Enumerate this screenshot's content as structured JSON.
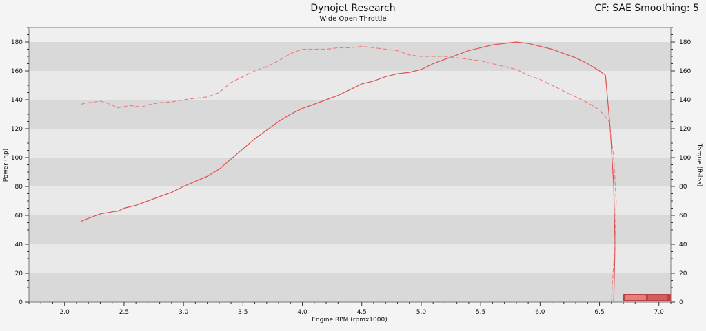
{
  "header": {
    "title": "Dynojet Research",
    "subtitle": "Wide Open Throttle",
    "corner_info": "CF: SAE Smoothing: 5"
  },
  "colors": {
    "power": "#e05050",
    "torque": "#f08080",
    "band_dark": "#d9d9d9",
    "band_light": "#e9e9e9"
  },
  "chart_data": {
    "type": "line",
    "title": "Dynojet Research",
    "subtitle": "Wide Open Throttle",
    "xlabel": "Engine RPM (rpmx1000)",
    "ylabel": "Power (hp)",
    "y2label": "Torque (ft-lbs)",
    "xlim": [
      1.7,
      7.1
    ],
    "ylim": [
      0,
      190
    ],
    "y2lim": [
      0,
      190
    ],
    "x_ticks": [
      "2.0",
      "2.5",
      "3.0",
      "3.5",
      "4.0",
      "4.5",
      "5.0",
      "5.5",
      "6.0",
      "6.5",
      "7.0"
    ],
    "y_ticks": [
      "0",
      "20",
      "40",
      "60",
      "80",
      "100",
      "120",
      "140",
      "160",
      "180"
    ],
    "y2_ticks": [
      "0",
      "20",
      "40",
      "60",
      "80",
      "100",
      "120",
      "140",
      "160",
      "180"
    ],
    "series": [
      {
        "style": "solid",
        "axis": "left",
        "points": [
          [
            2.14,
            56
          ],
          [
            2.2,
            58
          ],
          [
            2.3,
            61
          ],
          [
            2.4,
            62.5
          ],
          [
            2.45,
            63
          ],
          [
            2.5,
            65
          ],
          [
            2.6,
            67
          ],
          [
            2.7,
            70
          ],
          [
            2.8,
            73
          ],
          [
            2.9,
            76
          ],
          [
            3.0,
            80
          ],
          [
            3.1,
            83.5
          ],
          [
            3.2,
            87
          ],
          [
            3.3,
            92
          ],
          [
            3.4,
            99
          ],
          [
            3.5,
            106
          ],
          [
            3.6,
            113
          ],
          [
            3.7,
            119
          ],
          [
            3.8,
            125
          ],
          [
            3.9,
            130
          ],
          [
            4.0,
            134
          ],
          [
            4.1,
            137
          ],
          [
            4.2,
            140
          ],
          [
            4.3,
            143
          ],
          [
            4.4,
            147
          ],
          [
            4.5,
            151
          ],
          [
            4.6,
            153
          ],
          [
            4.7,
            156
          ],
          [
            4.8,
            158
          ],
          [
            4.9,
            159
          ],
          [
            5.0,
            161
          ],
          [
            5.1,
            165
          ],
          [
            5.2,
            168
          ],
          [
            5.3,
            171
          ],
          [
            5.4,
            174
          ],
          [
            5.5,
            176
          ],
          [
            5.6,
            178
          ],
          [
            5.7,
            179
          ],
          [
            5.8,
            180
          ],
          [
            5.9,
            179
          ],
          [
            6.0,
            177
          ],
          [
            6.1,
            175
          ],
          [
            6.2,
            172
          ],
          [
            6.3,
            169
          ],
          [
            6.4,
            165
          ],
          [
            6.5,
            160
          ],
          [
            6.55,
            157
          ],
          [
            6.59,
            120
          ],
          [
            6.62,
            80
          ],
          [
            6.63,
            40
          ],
          [
            6.62,
            0
          ]
        ]
      },
      {
        "style": "dashed",
        "axis": "right",
        "points": [
          [
            2.14,
            137
          ],
          [
            2.2,
            138
          ],
          [
            2.3,
            139
          ],
          [
            2.35,
            138
          ],
          [
            2.45,
            134.5
          ],
          [
            2.55,
            136
          ],
          [
            2.65,
            135
          ],
          [
            2.7,
            136.5
          ],
          [
            2.8,
            138
          ],
          [
            2.9,
            138.5
          ],
          [
            3.0,
            140
          ],
          [
            3.1,
            141
          ],
          [
            3.2,
            142
          ],
          [
            3.3,
            145
          ],
          [
            3.4,
            152
          ],
          [
            3.5,
            156
          ],
          [
            3.6,
            160
          ],
          [
            3.7,
            163
          ],
          [
            3.8,
            167
          ],
          [
            3.9,
            172
          ],
          [
            4.0,
            175
          ],
          [
            4.1,
            175
          ],
          [
            4.2,
            175
          ],
          [
            4.3,
            176
          ],
          [
            4.4,
            176
          ],
          [
            4.5,
            177
          ],
          [
            4.6,
            176
          ],
          [
            4.7,
            175
          ],
          [
            4.8,
            174
          ],
          [
            4.9,
            171
          ],
          [
            5.0,
            170
          ],
          [
            5.1,
            170
          ],
          [
            5.2,
            170
          ],
          [
            5.3,
            169
          ],
          [
            5.4,
            168
          ],
          [
            5.5,
            167
          ],
          [
            5.6,
            165
          ],
          [
            5.7,
            163
          ],
          [
            5.8,
            161
          ],
          [
            5.9,
            157
          ],
          [
            6.0,
            154
          ],
          [
            6.1,
            150
          ],
          [
            6.2,
            146
          ],
          [
            6.3,
            142
          ],
          [
            6.4,
            138
          ],
          [
            6.5,
            133
          ],
          [
            6.58,
            125
          ],
          [
            6.62,
            100
          ],
          [
            6.64,
            70
          ],
          [
            6.63,
            40
          ],
          [
            6.61,
            15
          ],
          [
            6.6,
            0
          ]
        ]
      }
    ]
  }
}
